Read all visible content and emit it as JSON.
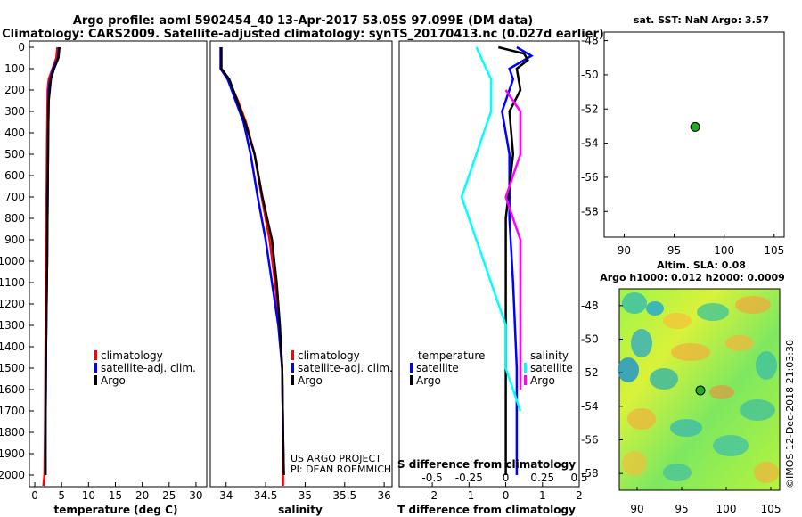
{
  "header": {
    "line1": "Argo profile: aoml 5902454_40 13-Apr-2017 53.05S 97.099E (DM data)",
    "line2": "Climatology: CARS2009. Satellite-adjusted climatology: synTS_20170413.nc (0.027d earlier)"
  },
  "colors": {
    "climatology": "#ff0000",
    "satellite": "#0000ff",
    "argo": "#000000",
    "sal_satellite": "#00ffff",
    "sal_argo": "#ff00ff",
    "marker": "#22aa22"
  },
  "credit": {
    "line1": "US ARGO PROJECT",
    "line2": "PI: DEAN ROEMMICH"
  },
  "watermark": "©IMOS 12-Dec-2018 21:03:30",
  "chart_data": [
    {
      "type": "line",
      "id": "temperature",
      "xlabel": "temperature (deg C)",
      "ylabel": "",
      "xlim": [
        -1,
        32
      ],
      "ylim": [
        2100,
        0
      ],
      "xticks": [
        "0",
        "5",
        "10",
        "15",
        "20",
        "25",
        "30"
      ],
      "yticks": [
        "0",
        "100",
        "200",
        "300",
        "400",
        "500",
        "600",
        "700",
        "800",
        "900",
        "1000",
        "1100",
        "1200",
        "1300",
        "1400",
        "1500",
        "1600",
        "1700",
        "1800",
        "1900",
        "2000"
      ],
      "legend": [
        "climatology",
        "satellite-adj. clim.",
        "Argo"
      ],
      "series": [
        {
          "name": "climatology",
          "x": [
            4.2,
            4.0,
            3.3,
            2.6,
            2.4,
            2.3,
            2.2,
            2.1,
            2.0,
            1.9,
            1.8,
            1.6
          ],
          "y": [
            0,
            50,
            100,
            150,
            200,
            400,
            700,
            1000,
            1400,
            1800,
            2000,
            2050
          ]
        },
        {
          "name": "satellite-adj. clim.",
          "x": [
            4.5,
            4.3,
            3.4,
            2.9,
            2.6,
            2.5,
            2.4,
            2.3,
            2.1,
            2.0,
            2.0
          ],
          "y": [
            0,
            50,
            100,
            150,
            200,
            400,
            700,
            1000,
            1400,
            1800,
            2000
          ]
        },
        {
          "name": "Argo",
          "x": [
            4.6,
            4.4,
            3.6,
            3.0,
            2.6,
            2.5,
            2.4,
            2.3,
            2.1,
            2.0,
            2.0
          ],
          "y": [
            0,
            50,
            100,
            150,
            250,
            400,
            700,
            1000,
            1400,
            1800,
            2000
          ]
        }
      ]
    },
    {
      "type": "line",
      "id": "salinity",
      "xlabel": "salinity",
      "xlim": [
        33.8,
        36.1
      ],
      "ylim": [
        2100,
        0
      ],
      "xticks": [
        "34",
        "34.5",
        "35",
        "35.5",
        "36"
      ],
      "legend": [
        "climatology",
        "satellite-adj. clim.",
        "Argo"
      ],
      "series": [
        {
          "name": "climatology",
          "x": [
            33.94,
            33.94,
            34.03,
            34.15,
            34.25,
            34.36,
            34.45,
            34.55,
            34.62,
            34.67,
            34.71,
            34.72,
            34.72,
            34.72
          ],
          "y": [
            0,
            100,
            150,
            250,
            350,
            500,
            700,
            900,
            1100,
            1300,
            1500,
            1800,
            2000,
            2050
          ]
        },
        {
          "name": "satellite-adj. clim.",
          "x": [
            33.93,
            33.93,
            34.02,
            34.12,
            34.22,
            34.31,
            34.4,
            34.5,
            34.58,
            34.66,
            34.71,
            34.72,
            34.73
          ],
          "y": [
            0,
            100,
            150,
            250,
            350,
            500,
            700,
            900,
            1100,
            1300,
            1500,
            1800,
            2000
          ]
        },
        {
          "name": "Argo",
          "x": [
            33.94,
            33.94,
            34.04,
            34.14,
            34.24,
            34.36,
            34.46,
            34.58,
            34.64,
            34.68,
            34.71,
            34.72,
            34.73
          ],
          "y": [
            0,
            100,
            150,
            250,
            350,
            500,
            700,
            900,
            1100,
            1300,
            1500,
            1800,
            2000
          ]
        }
      ]
    },
    {
      "type": "line",
      "id": "differences",
      "xlabel": "T difference from climatology",
      "top_label": "S difference from climatology",
      "xlim": [
        -2.9,
        2.0
      ],
      "ylim": [
        2100,
        0
      ],
      "xticks": [
        "-2",
        "-1",
        "0",
        "1",
        "2"
      ],
      "sticks": [
        "-0.5",
        "-0.25",
        "0",
        "0.25",
        "0.5"
      ],
      "legend_temperature": {
        "title": "temperature",
        "items": [
          "satellite",
          "Argo"
        ]
      },
      "legend_salinity": {
        "title": "salinity",
        "items": [
          "satellite",
          "Argo"
        ]
      },
      "series": [
        {
          "name": "temperature satellite",
          "x": [
            0.3,
            0.7,
            0.1,
            0.2,
            -0.1,
            0.1,
            0.1,
            0.2,
            0.3,
            0.3,
            0.3
          ],
          "y": [
            0,
            40,
            100,
            150,
            300,
            500,
            800,
            1100,
            1500,
            1800,
            2000
          ]
        },
        {
          "name": "temperature Argo",
          "x": [
            -0.2,
            0.5,
            0.6,
            0.3,
            0.4,
            0.1,
            0.2,
            0.0,
            0.0,
            0.0,
            0.0,
            0.0
          ],
          "y": [
            0,
            30,
            60,
            100,
            200,
            300,
            500,
            800,
            1100,
            1500,
            1800,
            2000
          ]
        },
        {
          "name": "salinity satellite",
          "x": [
            -0.2,
            -0.1,
            -0.1,
            -0.2,
            -0.3,
            -0.2,
            -0.1,
            0.0,
            0.0,
            0.1
          ],
          "y": [
            0,
            150,
            300,
            500,
            700,
            900,
            1100,
            1300,
            1500,
            1700
          ]
        },
        {
          "name": "salinity Argo",
          "x": [
            0.0,
            0.1,
            0.1,
            0.0,
            0.1,
            0.1,
            0.1,
            0.1,
            0.1
          ],
          "y": [
            200,
            300,
            500,
            700,
            900,
            1100,
            1300,
            1500,
            1600
          ]
        }
      ]
    },
    {
      "type": "scatter",
      "id": "sst_map",
      "title": "sat. SST: NaN Argo: 3.57",
      "xlim": [
        88,
        106
      ],
      "ylim": [
        -59.5,
        -47.5
      ],
      "xticks": [
        "90",
        "95",
        "100",
        "105"
      ],
      "yticks": [
        "-48",
        "-50",
        "-52",
        "-54",
        "-56",
        "-58"
      ],
      "points": [
        {
          "x": 97.1,
          "y": -53.05
        }
      ]
    },
    {
      "type": "heatmap",
      "id": "sla_map",
      "title": "Altim. SLA: 0.08",
      "subtitle": "Argo h1000: 0.012 h2000: 0.0009",
      "xlim": [
        88,
        106
      ],
      "ylim": [
        -59,
        -47
      ],
      "xticks": [
        "90",
        "95",
        "100",
        "105"
      ],
      "yticks": [
        "-48",
        "-50",
        "-52",
        "-54",
        "-56",
        "-58"
      ],
      "points": [
        {
          "x": 97.1,
          "y": -53.05
        }
      ]
    }
  ]
}
